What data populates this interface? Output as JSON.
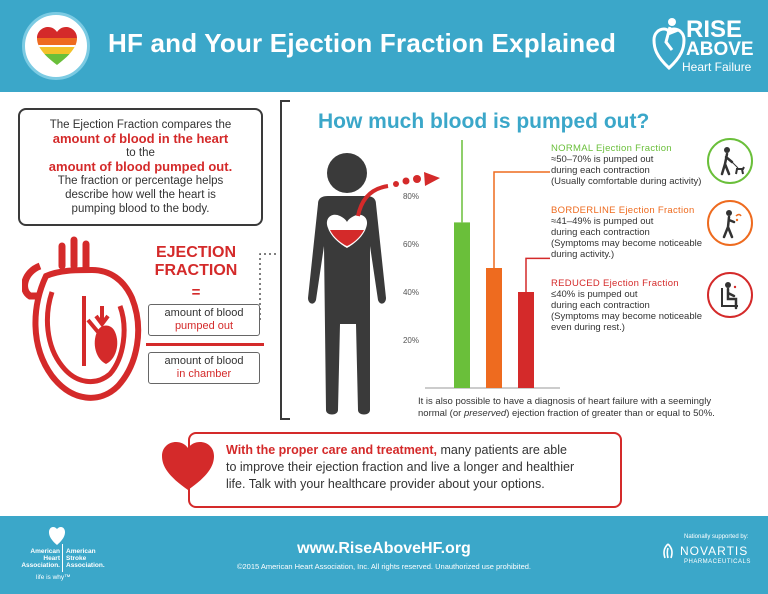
{
  "header": {
    "title": "HF and Your Ejection Fraction Explained",
    "brand_line1": "RISE",
    "brand_line2": "ABOVE",
    "brand_line3": "Heart Failure"
  },
  "definition": {
    "line1": "The Ejection Fraction compares the",
    "strong1": "amount of blood in the heart",
    "line2": "to the",
    "strong2": "amount of blood pumped out.",
    "line3": "The fraction or percentage helps",
    "line4": "describe how well the heart is",
    "line5": "pumping blood to the body."
  },
  "formula": {
    "label_line1": "EJECTION",
    "label_line2": "FRACTION",
    "equals": "=",
    "numerator_line1": "amount of blood",
    "numerator_line2": "pumped out",
    "denominator_line1": "amount of blood",
    "denominator_line2": "in chamber"
  },
  "subtitle": "How much blood is pumped out?",
  "chart_data": {
    "type": "bar",
    "categories": [
      "Normal",
      "Borderline",
      "Reduced"
    ],
    "values": [
      69,
      50,
      40
    ],
    "colors": [
      "#6abf3a",
      "#ee6b1f",
      "#d42a2a"
    ],
    "yticks": [
      "20%",
      "40%",
      "60%",
      "80%"
    ],
    "ytick_values": [
      20,
      40,
      60,
      80
    ],
    "ylim": [
      0,
      100
    ],
    "normal_marker": 110,
    "borderline_marker": 90,
    "reduced_marker": 54,
    "note_line1": "It is also possible to have a diagnosis of heart failure with a seemingly",
    "note_line2_pre": "normal (or ",
    "note_line2_em": "preserved",
    "note_line2_post": ") ejection fraction of greater than or equal to 50%."
  },
  "legend": {
    "normal": {
      "title": "NORMAL Ejection Fraction",
      "line1": "≈50–70% is pumped out",
      "line2": "during each contraction",
      "line3": "(Usually comfortable during activity)",
      "icon": "person-walking-dog-icon"
    },
    "borderline": {
      "title": "BORDERLINE Ejection Fraction",
      "line1": "≈41–49% is pumped out",
      "line2": "during each contraction",
      "line3": "(Symptoms may become noticeable",
      "line4": "during activity.)",
      "icon": "person-tired-walking-icon"
    },
    "reduced": {
      "title": "REDUCED Ejection Fraction",
      "line1": "≤40% is pumped out",
      "line2": "during each contraction",
      "line3": "(Symptoms may become noticeable",
      "line4": "even during rest.)",
      "icon": "person-sitting-resting-icon"
    }
  },
  "message": {
    "strong": "With the proper care and treatment,",
    "text1": " many patients are able",
    "text2": "to improve their ejection fraction and live a longer and healthier",
    "text3": "life. Talk with your healthcare provider about your options."
  },
  "footer": {
    "url": "www.RiseAboveHF.org",
    "copyright": "©2015 American Heart Association, Inc. All rights reserved. Unauthorized use prohibited.",
    "aha_left": "American Heart Association.",
    "aha_right": "American Stroke Association.",
    "aha_tagline": "life is why™",
    "supported_by": "Nationally supported by:",
    "sponsor": "NOVARTIS",
    "sponsor_sub": "PHARMACEUTICALS"
  },
  "colors": {
    "header_bg": "#3ba7c9",
    "accent_red": "#d42a2a",
    "normal_green": "#6abf3a",
    "borderline_orange": "#ee6b1f"
  }
}
